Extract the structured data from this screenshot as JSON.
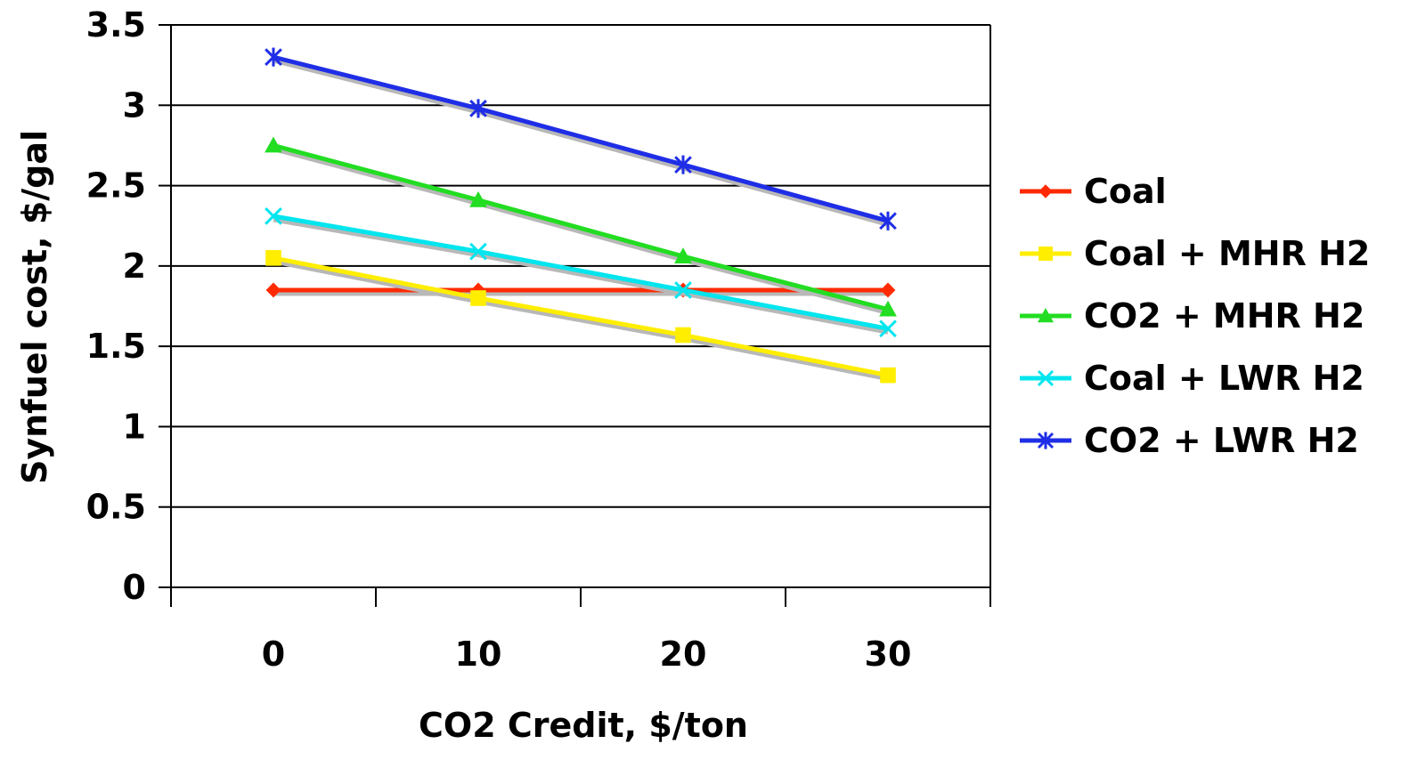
{
  "chart_data": {
    "type": "line",
    "title": "",
    "xlabel": "CO2 Credit, $/ton",
    "ylabel": "Synfuel cost, $/gal",
    "categories": [
      "0",
      "10",
      "20",
      "30"
    ],
    "ylim": [
      0,
      3.5
    ],
    "yticks": [
      "0",
      "0.5",
      "1",
      "1.5",
      "2",
      "2.5",
      "3",
      "3.5"
    ],
    "grid": true,
    "legend_position": "right",
    "series": [
      {
        "name": "Coal",
        "values": [
          1.85,
          1.85,
          1.85,
          1.85
        ],
        "color": "#ff2a00",
        "marker": "diamond"
      },
      {
        "name": "Coal + MHR H2",
        "values": [
          2.05,
          1.8,
          1.57,
          1.32
        ],
        "color": "#ffee00",
        "marker": "square"
      },
      {
        "name": "CO2 + MHR H2",
        "values": [
          2.75,
          2.41,
          2.06,
          1.73
        ],
        "color": "#22dd22",
        "marker": "triangle"
      },
      {
        "name": "Coal + LWR H2",
        "values": [
          2.31,
          2.09,
          1.85,
          1.61
        ],
        "color": "#00e5ee",
        "marker": "x"
      },
      {
        "name": "CO2 + LWR H2",
        "values": [
          3.3,
          2.98,
          2.63,
          2.28
        ],
        "color": "#1f2ee6",
        "marker": "star"
      }
    ]
  }
}
